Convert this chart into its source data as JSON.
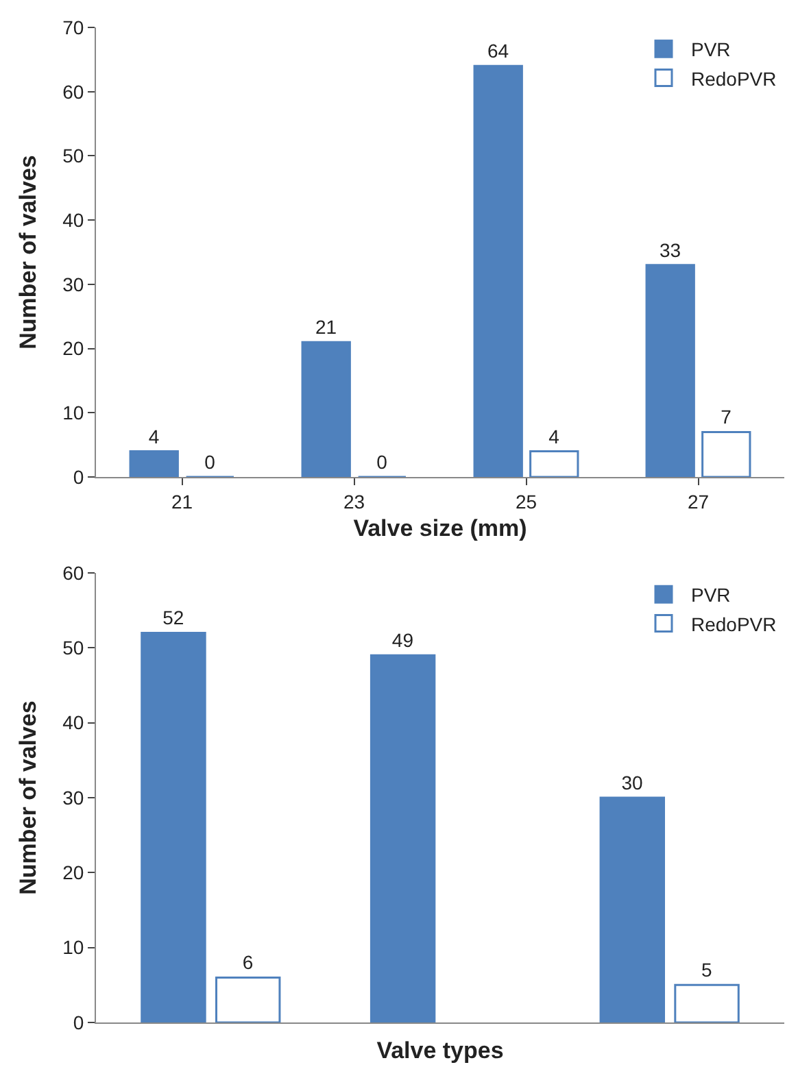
{
  "chart_data": [
    {
      "type": "bar",
      "xlabel": "Valve size (mm)",
      "ylabel": "Number of valves",
      "categories": [
        "21",
        "23",
        "25",
        "27"
      ],
      "series": [
        {
          "name": "PVR",
          "color": "#4f81bd",
          "values": [
            4,
            21,
            64,
            33
          ]
        },
        {
          "name": "RedoPVR",
          "color": "#4f81bd",
          "values": [
            0,
            0,
            4,
            7
          ]
        }
      ],
      "ylim": [
        0,
        70
      ],
      "yticks": [
        0,
        10,
        20,
        30,
        40,
        50,
        60,
        70
      ],
      "grid": false,
      "legend": "top right",
      "data_labels": true
    },
    {
      "type": "bar",
      "xlabel": "Valve types",
      "ylabel": "Number of valves",
      "categories": [
        null,
        null,
        null
      ],
      "series": [
        {
          "name": "PVR",
          "color": "#4f81bd",
          "values": [
            52,
            49,
            30
          ]
        },
        {
          "name": "RedoPVR",
          "color": "#4f81bd",
          "values": [
            6,
            null,
            5
          ]
        }
      ],
      "ylim": [
        0,
        60
      ],
      "yticks": [
        0,
        10,
        20,
        30,
        40,
        50,
        60
      ],
      "grid": false,
      "legend": "top right",
      "data_labels": true
    }
  ]
}
